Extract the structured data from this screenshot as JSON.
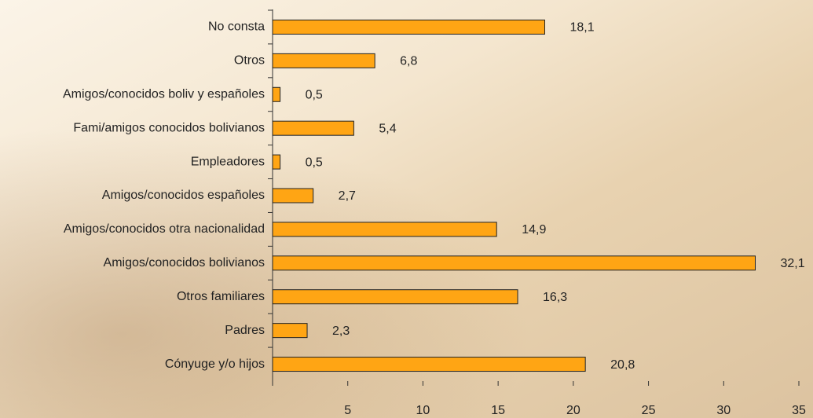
{
  "chart_data": {
    "type": "barh",
    "categories": [
      "No consta",
      "Otros",
      "Amigos/conocidos boliv y españoles",
      "Fami/amigos conocidos bolivianos",
      "Empleadores",
      "Amigos/conocidos españoles",
      "Amigos/conocidos otra nacionalidad",
      "Amigos/conocidos bolivianos",
      "Otros familiares",
      "Padres",
      "Cónyuge y/o hijos"
    ],
    "values": [
      18.1,
      6.8,
      0.5,
      5.4,
      0.5,
      2.7,
      14.9,
      32.1,
      16.3,
      2.3,
      20.8
    ],
    "value_labels": [
      "18,1",
      "6,8",
      "0,5",
      "5,4",
      "0,5",
      "2,7",
      "14,9",
      "32,1",
      "16,3",
      "2,3",
      "20,8"
    ],
    "color": "#ffa514",
    "xlim": [
      0,
      35
    ],
    "xticks": [
      5,
      10,
      15,
      20,
      25,
      30,
      35
    ]
  }
}
